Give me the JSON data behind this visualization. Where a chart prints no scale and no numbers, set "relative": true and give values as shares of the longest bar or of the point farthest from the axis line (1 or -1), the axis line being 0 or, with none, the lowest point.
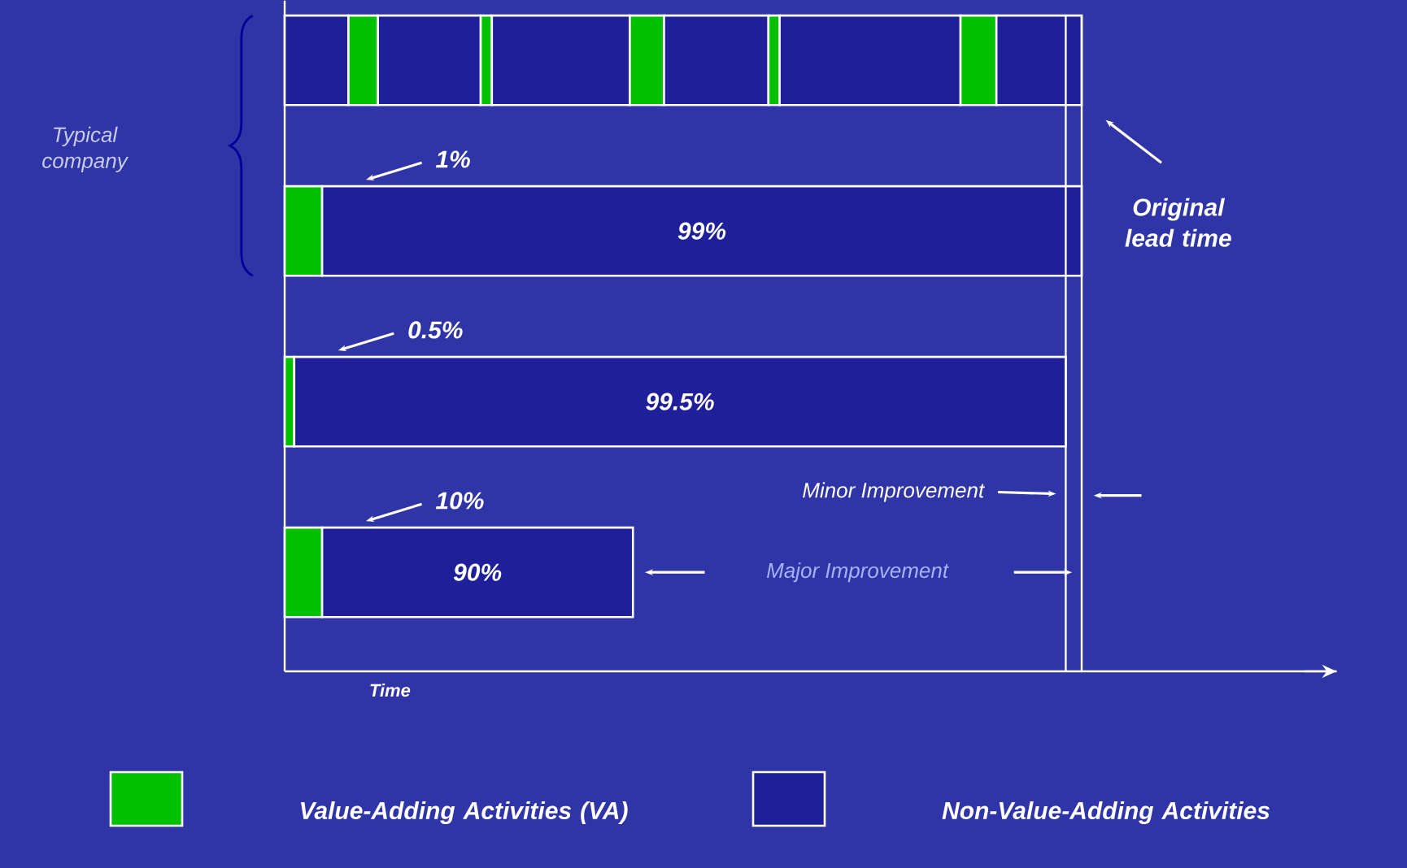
{
  "chart_data": {
    "type": "bar",
    "orientation": "horizontal",
    "stacked": true,
    "relative": true,
    "categories": [
      null,
      null,
      null,
      null
    ],
    "xlabel": "Time",
    "legend": "bottom",
    "series": [
      {
        "name": "Value-Adding Activities (VA)",
        "color": "#00c000",
        "values": [
          null,
          0.047,
          0.012,
          0.047
        ]
      },
      {
        "name": "Non-Value-Adding Activities",
        "color": "#1f1f99",
        "values": [
          0.08,
          0.953,
          0.968,
          0.39
        ]
      },
      {
        "color": "#00c000",
        "values": [
          0.037,
          null,
          null,
          null
        ]
      },
      {
        "color": "#1f1f99",
        "values": [
          0.129,
          null,
          null,
          null
        ]
      },
      {
        "color": "#00c000",
        "values": [
          0.014,
          null,
          null,
          null
        ]
      },
      {
        "color": "#1f1f99",
        "values": [
          0.173,
          null,
          null,
          null
        ]
      },
      {
        "color": "#00c000",
        "values": [
          0.043,
          null,
          null,
          null
        ]
      },
      {
        "color": "#1f1f99",
        "values": [
          0.131,
          null,
          null,
          null
        ]
      },
      {
        "color": "#00c000",
        "values": [
          0.014,
          null,
          null,
          null
        ]
      },
      {
        "color": "#1f1f99",
        "values": [
          0.227,
          null,
          null,
          null
        ]
      },
      {
        "color": "#00c000",
        "values": [
          0.045,
          null,
          null,
          null
        ]
      },
      {
        "color": "#1f1f99",
        "values": [
          0.107,
          null,
          null,
          null
        ]
      }
    ],
    "ref_lines": [
      {
        "axis": "x",
        "value": 1,
        "label": "Original lead time"
      },
      {
        "axis": "x",
        "value": 0.98,
        "label": "Minor Improvement"
      }
    ],
    "annotations": [
      "Typical company",
      "Major Improvement",
      "1%",
      "0.5%",
      "10%",
      "99%",
      "99.5%",
      "90%"
    ]
  }
}
